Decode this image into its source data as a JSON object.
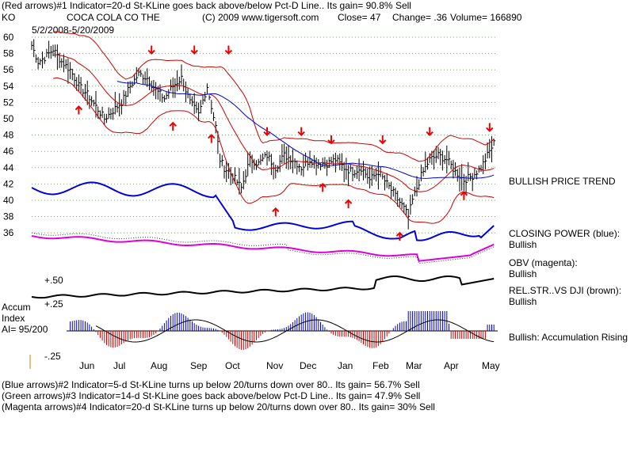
{
  "header": {
    "line1": "(Red arrows)#1 Indicator=20-d St-KLine goes back above/below Pct-D Line.. Its gain= 90.8% Sell",
    "ticker": "KO",
    "company": "COCA COLA CO THE",
    "copyright": "(C) 2009 www.tigersoft.com",
    "close": "Close=  47",
    "change": "Change= .36",
    "volume": "Volume= 166890",
    "date_range": "5/2/2008-5/20/2009"
  },
  "right_labels": {
    "trend": "BULLISH PRICE TREND",
    "cp_title": "CLOSING POWER (blue):",
    "cp_val": "Bullish",
    "obv_title": "OBV (magenta):",
    "obv_val": "Bullish",
    "rs_title": "REL.STR..VS DJI (brown):",
    "rs_val": "Bullish",
    "accum": "Bullish: Accumulation Rising"
  },
  "accum_labels": {
    "l1": "Accum",
    "l2": "Index",
    "l3": "AI= 95/200",
    "p50": "+.50",
    "p25": "+.25",
    "m25": "-.25"
  },
  "footer": {
    "line1": "(Blue arrows)#2 Indicator=5-d St-KLine turns up below 20/turns down over 80.. Its gain= 56.7% Sell",
    "line2": "(Green arrows)#3 Indicator=14-d St-KLine goes back above/below Pct-D Line.. Its gain= 47.9% Sell",
    "line3": "(Magenta arrows)#4 Indicator=20-d St-KLine turns up below 20/turns down over 80.. Its gain= 30% Sell"
  },
  "colors": {
    "price": "#000000",
    "bands": "#cc0000",
    "ma": "#0000cc",
    "closing_power": "#0000dd",
    "obv": "#dd00dd",
    "rel_str": "#000000",
    "accum_pos": "#0000cc",
    "accum_neg": "#cc0000",
    "arrows": "#ee0000"
  },
  "chart_data": {
    "type": "line",
    "ylim": [
      34,
      61
    ],
    "yticks": [
      60,
      58,
      56,
      54,
      52,
      50,
      48,
      46,
      44,
      42,
      40,
      38,
      36
    ],
    "months": [
      "Jun",
      "Jul",
      "Aug",
      "Sep",
      "Oct",
      "Nov",
      "Dec",
      "Jan",
      "Feb",
      "Mar",
      "Apr",
      "May"
    ],
    "price_close": [
      {
        "x": 0,
        "y": 59
      },
      {
        "x": 3,
        "y": 57
      },
      {
        "x": 6,
        "y": 57.5
      },
      {
        "x": 10,
        "y": 58.5
      },
      {
        "x": 14,
        "y": 57
      },
      {
        "x": 18,
        "y": 56
      },
      {
        "x": 22,
        "y": 54
      },
      {
        "x": 26,
        "y": 53
      },
      {
        "x": 30,
        "y": 51.5
      },
      {
        "x": 34,
        "y": 50
      },
      {
        "x": 38,
        "y": 51
      },
      {
        "x": 42,
        "y": 52
      },
      {
        "x": 46,
        "y": 54
      },
      {
        "x": 50,
        "y": 55.5
      },
      {
        "x": 54,
        "y": 55
      },
      {
        "x": 58,
        "y": 53.5
      },
      {
        "x": 62,
        "y": 52.5
      },
      {
        "x": 66,
        "y": 54
      },
      {
        "x": 70,
        "y": 55
      },
      {
        "x": 74,
        "y": 52
      },
      {
        "x": 78,
        "y": 50.5
      },
      {
        "x": 82,
        "y": 54
      },
      {
        "x": 86,
        "y": 49
      },
      {
        "x": 88,
        "y": 45
      },
      {
        "x": 90,
        "y": 44
      },
      {
        "x": 94,
        "y": 43
      },
      {
        "x": 98,
        "y": 41.5
      },
      {
        "x": 102,
        "y": 45
      },
      {
        "x": 106,
        "y": 44.5
      },
      {
        "x": 110,
        "y": 45.5
      },
      {
        "x": 114,
        "y": 44
      },
      {
        "x": 118,
        "y": 45.5
      },
      {
        "x": 122,
        "y": 45
      },
      {
        "x": 126,
        "y": 44
      },
      {
        "x": 130,
        "y": 45
      },
      {
        "x": 134,
        "y": 44.5
      },
      {
        "x": 138,
        "y": 44.5
      },
      {
        "x": 142,
        "y": 45
      },
      {
        "x": 146,
        "y": 44
      },
      {
        "x": 150,
        "y": 43.5
      },
      {
        "x": 154,
        "y": 44
      },
      {
        "x": 158,
        "y": 42.5
      },
      {
        "x": 162,
        "y": 43.5
      },
      {
        "x": 166,
        "y": 42
      },
      {
        "x": 170,
        "y": 40.5
      },
      {
        "x": 174,
        "y": 39
      },
      {
        "x": 176,
        "y": 38
      },
      {
        "x": 178,
        "y": 40
      },
      {
        "x": 182,
        "y": 43
      },
      {
        "x": 186,
        "y": 45
      },
      {
        "x": 190,
        "y": 45.5
      },
      {
        "x": 194,
        "y": 45
      },
      {
        "x": 198,
        "y": 43.5
      },
      {
        "x": 202,
        "y": 42.5
      },
      {
        "x": 206,
        "y": 43
      },
      {
        "x": 210,
        "y": 44
      },
      {
        "x": 214,
        "y": 46
      },
      {
        "x": 216,
        "y": 47
      }
    ],
    "red_arrows": [
      {
        "x": 22,
        "dir": "up",
        "y": 51.5
      },
      {
        "x": 56,
        "dir": "down",
        "y": 58
      },
      {
        "x": 76,
        "dir": "down",
        "y": 58
      },
      {
        "x": 66,
        "dir": "up",
        "y": 49.5
      },
      {
        "x": 84,
        "dir": "up",
        "y": 48
      },
      {
        "x": 92,
        "dir": "down",
        "y": 58
      },
      {
        "x": 110,
        "dir": "down",
        "y": 48
      },
      {
        "x": 126,
        "dir": "down",
        "y": 48
      },
      {
        "x": 114,
        "dir": "up",
        "y": 39
      },
      {
        "x": 140,
        "dir": "down",
        "y": 47
      },
      {
        "x": 136,
        "dir": "up",
        "y": 42
      },
      {
        "x": 148,
        "dir": "up",
        "y": 40
      },
      {
        "x": 164,
        "dir": "down",
        "y": 47
      },
      {
        "x": 172,
        "dir": "up",
        "y": 36
      },
      {
        "x": 186,
        "dir": "down",
        "y": 48
      },
      {
        "x": 202,
        "dir": "up",
        "y": 41
      },
      {
        "x": 214,
        "dir": "down",
        "y": 48.5
      }
    ]
  }
}
